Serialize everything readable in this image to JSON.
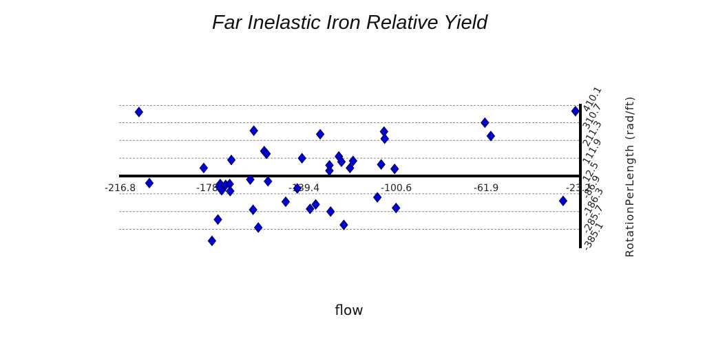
{
  "chart_data": {
    "type": "scatter",
    "title": "Far Inelastic Iron Relative Yield",
    "xlabel": "flow",
    "ylabel": "RotationPerLength (rad/ft)",
    "xlim": [
      -216.8,
      -21.6
    ],
    "ylim": [
      -385.1,
      410.1
    ],
    "x_ticks": [
      "-216.8",
      "-178.1",
      "-139.4",
      "-100.6",
      "-61.9",
      "-23.2"
    ],
    "y_ticks": [
      "410.1",
      "310.7",
      "211.3",
      "111.9",
      "12.5",
      "-86.9",
      "-186.3",
      "-285.7",
      "-385.1"
    ],
    "grid": true,
    "legend": "none",
    "marker_color": "#0000cc",
    "marker_edge": "#000066",
    "points": [
      {
        "x": -208.4,
        "y": 360
      },
      {
        "x": -204.0,
        "y": -40
      },
      {
        "x": -181.0,
        "y": 45
      },
      {
        "x": -174.5,
        "y": -60
      },
      {
        "x": -174.0,
        "y": -45
      },
      {
        "x": -173.4,
        "y": -80
      },
      {
        "x": -171.7,
        "y": -50
      },
      {
        "x": -170.0,
        "y": -45
      },
      {
        "x": -169.8,
        "y": -85
      },
      {
        "x": -169.3,
        "y": 90
      },
      {
        "x": -175.0,
        "y": -245
      },
      {
        "x": -177.5,
        "y": -365
      },
      {
        "x": -161.3,
        "y": -20
      },
      {
        "x": -159.8,
        "y": 255
      },
      {
        "x": -160.1,
        "y": -190
      },
      {
        "x": -157.9,
        "y": -290
      },
      {
        "x": -155.4,
        "y": 140
      },
      {
        "x": -154.4,
        "y": 125
      },
      {
        "x": -153.8,
        "y": -30
      },
      {
        "x": -146.3,
        "y": -145
      },
      {
        "x": -141.4,
        "y": -70
      },
      {
        "x": -139.4,
        "y": 100
      },
      {
        "x": -136.0,
        "y": -185
      },
      {
        "x": -133.6,
        "y": -160
      },
      {
        "x": -131.7,
        "y": 235
      },
      {
        "x": -127.8,
        "y": 60
      },
      {
        "x": -127.8,
        "y": 30
      },
      {
        "x": -127.3,
        "y": -200
      },
      {
        "x": -123.8,
        "y": 110
      },
      {
        "x": -122.7,
        "y": 80
      },
      {
        "x": -121.7,
        "y": -275
      },
      {
        "x": -119.1,
        "y": 45
      },
      {
        "x": -117.8,
        "y": 85
      },
      {
        "x": -107.5,
        "y": -120
      },
      {
        "x": -105.9,
        "y": 65
      },
      {
        "x": -104.7,
        "y": 250
      },
      {
        "x": -104.4,
        "y": 210
      },
      {
        "x": -100.2,
        "y": 40
      },
      {
        "x": -99.6,
        "y": -180
      },
      {
        "x": -62.0,
        "y": 300
      },
      {
        "x": -59.5,
        "y": 225
      },
      {
        "x": -28.9,
        "y": -140
      },
      {
        "x": -23.7,
        "y": 365
      }
    ]
  }
}
